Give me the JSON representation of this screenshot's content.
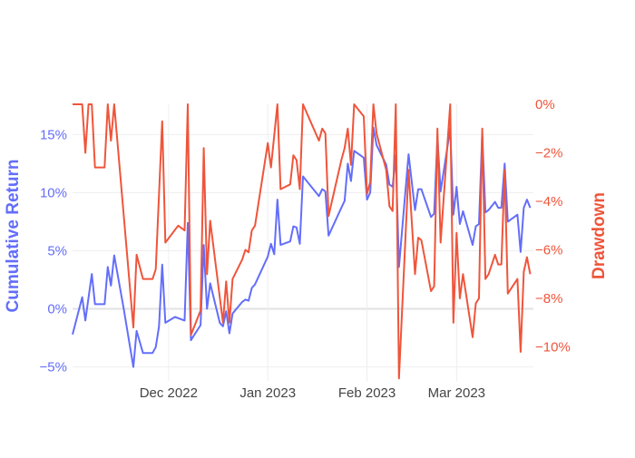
{
  "chart_data": {
    "type": "line",
    "x_axis": {
      "ticks": [
        {
          "date": "2022-12-01",
          "label": "Dec 2022"
        },
        {
          "date": "2023-01-01",
          "label": "Jan 2023"
        },
        {
          "date": "2023-02-01",
          "label": "Feb 2023"
        },
        {
          "date": "2023-03-01",
          "label": "Mar 2023"
        }
      ],
      "range": [
        "2022-11-01",
        "2023-03-25"
      ]
    },
    "y_left": {
      "label": "Cumulative Return",
      "color": "#636efa",
      "range": [
        -0.062,
        0.176
      ],
      "ticks": [
        {
          "value": -0.05,
          "label": "−5%"
        },
        {
          "value": 0.0,
          "label": "0%"
        },
        {
          "value": 0.05,
          "label": "5%"
        },
        {
          "value": 0.1,
          "label": "10%"
        },
        {
          "value": 0.15,
          "label": "15%"
        }
      ]
    },
    "y_right": {
      "label": "Drawdown",
      "color": "#ef553b",
      "range": [
        -0.114,
        0.0
      ],
      "ticks": [
        {
          "value": 0.0,
          "label": "0%"
        },
        {
          "value": -0.02,
          "label": "−2%"
        },
        {
          "value": -0.04,
          "label": "−4%"
        },
        {
          "value": -0.06,
          "label": "−6%"
        },
        {
          "value": -0.08,
          "label": "−8%"
        },
        {
          "value": -0.1,
          "label": "−10%"
        }
      ]
    },
    "grid": true,
    "series": [
      {
        "axis": "left",
        "color": "#636efa",
        "points": [
          [
            "2022-11-01",
            -0.022
          ],
          [
            "2022-11-04",
            0.01
          ],
          [
            "2022-11-05",
            -0.01
          ],
          [
            "2022-11-07",
            0.03
          ],
          [
            "2022-11-08",
            0.004
          ],
          [
            "2022-11-11",
            0.004
          ],
          [
            "2022-11-12",
            0.036
          ],
          [
            "2022-11-13",
            0.02
          ],
          [
            "2022-11-14",
            0.046
          ],
          [
            "2022-11-17",
            0.0
          ],
          [
            "2022-11-20",
            -0.05
          ],
          [
            "2022-11-21",
            -0.019
          ],
          [
            "2022-11-23",
            -0.038
          ],
          [
            "2022-11-26",
            -0.038
          ],
          [
            "2022-11-27",
            -0.033
          ],
          [
            "2022-11-28",
            -0.015
          ],
          [
            "2022-11-29",
            0.038
          ],
          [
            "2022-11-30",
            -0.012
          ],
          [
            "2022-12-03",
            -0.007
          ],
          [
            "2022-12-06",
            -0.01
          ],
          [
            "2022-12-07",
            0.074
          ],
          [
            "2022-12-08",
            -0.027
          ],
          [
            "2022-12-11",
            -0.014
          ],
          [
            "2022-12-12",
            0.055
          ],
          [
            "2022-12-13",
            0.0
          ],
          [
            "2022-12-14",
            0.022
          ],
          [
            "2022-12-17",
            -0.012
          ],
          [
            "2022-12-18",
            -0.015
          ],
          [
            "2022-12-19",
            -0.002
          ],
          [
            "2022-12-20",
            -0.021
          ],
          [
            "2022-12-21",
            -0.004
          ],
          [
            "2022-12-24",
            0.006
          ],
          [
            "2022-12-25",
            0.008
          ],
          [
            "2022-12-26",
            0.007
          ],
          [
            "2022-12-27",
            0.018
          ],
          [
            "2022-12-28",
            0.021
          ],
          [
            "2023-01-01",
            0.045
          ],
          [
            "2023-01-02",
            0.056
          ],
          [
            "2023-01-03",
            0.047
          ],
          [
            "2023-01-04",
            0.094
          ],
          [
            "2023-01-05",
            0.055
          ],
          [
            "2023-01-08",
            0.058
          ],
          [
            "2023-01-09",
            0.071
          ],
          [
            "2023-01-10",
            0.07
          ],
          [
            "2023-01-11",
            0.056
          ],
          [
            "2023-01-12",
            0.114
          ],
          [
            "2023-01-17",
            0.097
          ],
          [
            "2023-01-18",
            0.103
          ],
          [
            "2023-01-19",
            0.101
          ],
          [
            "2023-01-20",
            0.063
          ],
          [
            "2023-01-24",
            0.087
          ],
          [
            "2023-01-25",
            0.093
          ],
          [
            "2023-01-26",
            0.125
          ],
          [
            "2023-01-27",
            0.11
          ],
          [
            "2023-01-28",
            0.136
          ],
          [
            "2023-01-31",
            0.13
          ],
          [
            "2023-02-01",
            0.094
          ],
          [
            "2023-02-02",
            0.1
          ],
          [
            "2023-02-03",
            0.156
          ],
          [
            "2023-02-04",
            0.141
          ],
          [
            "2023-02-07",
            0.124
          ],
          [
            "2023-02-08",
            0.107
          ],
          [
            "2023-02-09",
            0.105
          ],
          [
            "2023-02-10",
            0.132
          ],
          [
            "2023-02-11",
            0.036
          ],
          [
            "2023-02-14",
            0.133
          ],
          [
            "2023-02-16",
            0.085
          ],
          [
            "2023-02-17",
            0.103
          ],
          [
            "2023-02-18",
            0.103
          ],
          [
            "2023-02-21",
            0.079
          ],
          [
            "2023-02-22",
            0.082
          ],
          [
            "2023-02-23",
            0.148
          ],
          [
            "2023-02-24",
            0.101
          ],
          [
            "2023-02-27",
            0.155
          ],
          [
            "2023-02-28",
            0.081
          ],
          [
            "2023-03-01",
            0.105
          ],
          [
            "2023-03-02",
            0.073
          ],
          [
            "2023-03-03",
            0.084
          ],
          [
            "2023-03-06",
            0.055
          ],
          [
            "2023-03-07",
            0.071
          ],
          [
            "2023-03-08",
            0.073
          ],
          [
            "2023-03-09",
            0.151
          ],
          [
            "2023-03-10",
            0.083
          ],
          [
            "2023-03-11",
            0.085
          ],
          [
            "2023-03-13",
            0.092
          ],
          [
            "2023-03-14",
            0.087
          ],
          [
            "2023-03-15",
            0.087
          ],
          [
            "2023-03-16",
            0.125
          ],
          [
            "2023-03-17",
            0.075
          ],
          [
            "2023-03-20",
            0.081
          ],
          [
            "2023-03-21",
            0.049
          ],
          [
            "2023-03-22",
            0.087
          ],
          [
            "2023-03-23",
            0.094
          ],
          [
            "2023-03-24",
            0.087
          ]
        ]
      },
      {
        "axis": "right",
        "color": "#ef553b",
        "points": [
          [
            "2022-11-01",
            0.0
          ],
          [
            "2022-11-04",
            0.0
          ],
          [
            "2022-11-05",
            -0.02
          ],
          [
            "2022-11-06",
            0.0
          ],
          [
            "2022-11-07",
            0.0
          ],
          [
            "2022-11-08",
            -0.026
          ],
          [
            "2022-11-11",
            -0.026
          ],
          [
            "2022-11-12",
            0.0
          ],
          [
            "2022-11-13",
            -0.015
          ],
          [
            "2022-11-14",
            0.0
          ],
          [
            "2022-11-20",
            -0.092
          ],
          [
            "2022-11-21",
            -0.062
          ],
          [
            "2022-11-23",
            -0.072
          ],
          [
            "2022-11-26",
            -0.072
          ],
          [
            "2022-11-27",
            -0.068
          ],
          [
            "2022-11-29",
            -0.007
          ],
          [
            "2022-11-30",
            -0.057
          ],
          [
            "2022-12-04",
            -0.05
          ],
          [
            "2022-12-06",
            -0.052
          ],
          [
            "2022-12-07",
            0.0
          ],
          [
            "2022-12-08",
            -0.095
          ],
          [
            "2022-12-11",
            -0.085
          ],
          [
            "2022-12-12",
            -0.018
          ],
          [
            "2022-12-13",
            -0.07
          ],
          [
            "2022-12-14",
            -0.048
          ],
          [
            "2022-12-18",
            -0.09
          ],
          [
            "2022-12-19",
            -0.073
          ],
          [
            "2022-12-20",
            -0.09
          ],
          [
            "2022-12-21",
            -0.072
          ],
          [
            "2022-12-24",
            -0.064
          ],
          [
            "2022-12-25",
            -0.06
          ],
          [
            "2022-12-26",
            -0.061
          ],
          [
            "2022-12-27",
            -0.052
          ],
          [
            "2022-12-28",
            -0.05
          ],
          [
            "2023-01-01",
            -0.016
          ],
          [
            "2023-01-02",
            -0.026
          ],
          [
            "2023-01-04",
            0.0
          ],
          [
            "2023-01-05",
            -0.035
          ],
          [
            "2023-01-08",
            -0.033
          ],
          [
            "2023-01-09",
            -0.021
          ],
          [
            "2023-01-10",
            -0.023
          ],
          [
            "2023-01-11",
            -0.035
          ],
          [
            "2023-01-12",
            0.0
          ],
          [
            "2023-01-17",
            -0.015
          ],
          [
            "2023-01-18",
            -0.01
          ],
          [
            "2023-01-19",
            -0.012
          ],
          [
            "2023-01-20",
            -0.046
          ],
          [
            "2023-01-24",
            -0.023
          ],
          [
            "2023-01-25",
            -0.018
          ],
          [
            "2023-01-26",
            -0.01
          ],
          [
            "2023-01-27",
            -0.025
          ],
          [
            "2023-01-28",
            0.0
          ],
          [
            "2023-01-31",
            -0.005
          ],
          [
            "2023-02-01",
            -0.037
          ],
          [
            "2023-02-02",
            -0.032
          ],
          [
            "2023-02-03",
            0.0
          ],
          [
            "2023-02-04",
            -0.012
          ],
          [
            "2023-02-07",
            -0.027
          ],
          [
            "2023-02-08",
            -0.042
          ],
          [
            "2023-02-09",
            -0.044
          ],
          [
            "2023-02-10",
            0.0
          ],
          [
            "2023-02-11",
            -0.113
          ],
          [
            "2023-02-14",
            -0.027
          ],
          [
            "2023-02-16",
            -0.07
          ],
          [
            "2023-02-17",
            -0.055
          ],
          [
            "2023-02-18",
            -0.056
          ],
          [
            "2023-02-21",
            -0.077
          ],
          [
            "2023-02-22",
            -0.075
          ],
          [
            "2023-02-23",
            -0.01
          ],
          [
            "2023-02-24",
            -0.057
          ],
          [
            "2023-02-27",
            0.0
          ],
          [
            "2023-02-28",
            -0.09
          ],
          [
            "2023-03-01",
            -0.053
          ],
          [
            "2023-03-02",
            -0.08
          ],
          [
            "2023-03-03",
            -0.07
          ],
          [
            "2023-03-06",
            -0.096
          ],
          [
            "2023-03-07",
            -0.082
          ],
          [
            "2023-03-08",
            -0.08
          ],
          [
            "2023-03-09",
            -0.01
          ],
          [
            "2023-03-10",
            -0.072
          ],
          [
            "2023-03-11",
            -0.07
          ],
          [
            "2023-03-13",
            -0.062
          ],
          [
            "2023-03-14",
            -0.066
          ],
          [
            "2023-03-15",
            -0.066
          ],
          [
            "2023-03-16",
            -0.027
          ],
          [
            "2023-03-17",
            -0.078
          ],
          [
            "2023-03-20",
            -0.072
          ],
          [
            "2023-03-21",
            -0.102
          ],
          [
            "2023-03-22",
            -0.069
          ],
          [
            "2023-03-23",
            -0.063
          ],
          [
            "2023-03-24",
            -0.07
          ]
        ]
      }
    ]
  }
}
